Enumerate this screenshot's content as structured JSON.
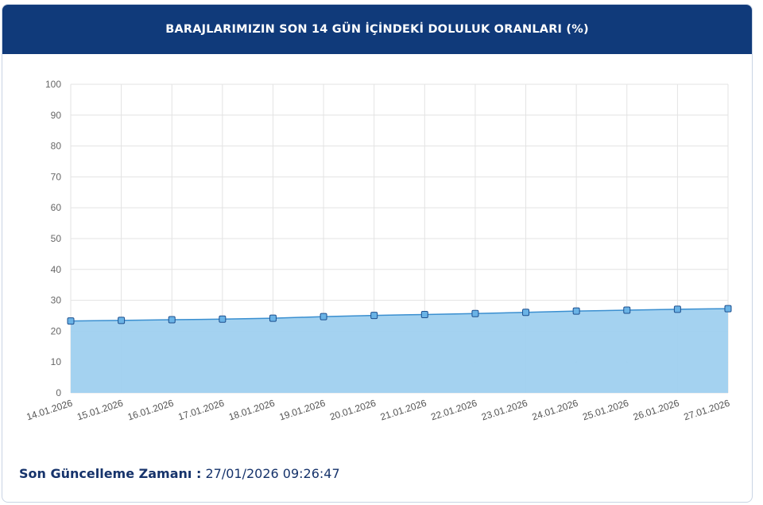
{
  "header": {
    "title": "BARAJLARIMIZIN SON 14 GÜN İÇİNDEKİ DOLULUK ORANLARI (%)"
  },
  "footer": {
    "label": "Son Güncelleme Zamanı :",
    "value": "27/01/2026 09:26:47"
  },
  "colors": {
    "header_bg": "#103a7a",
    "line": "#3a8fd0",
    "area": "#9fd0ef",
    "marker": "#6ab3e6",
    "marker_stroke": "#1d4f8e",
    "grid": "#e3e3e3"
  },
  "chart_data": {
    "type": "area",
    "categories": [
      "14.01.2026",
      "15.01.2026",
      "16.01.2026",
      "17.01.2026",
      "18.01.2026",
      "19.01.2026",
      "20.01.2026",
      "21.01.2026",
      "22.01.2026",
      "23.01.2026",
      "24.01.2026",
      "25.01.2026",
      "26.01.2026",
      "27.01.2026"
    ],
    "series": [
      {
        "values": [
          23.3,
          23.5,
          23.7,
          23.9,
          24.2,
          24.7,
          25.1,
          25.4,
          25.7,
          26.1,
          26.5,
          26.8,
          27.1,
          27.3
        ]
      }
    ],
    "yticks": [
      0,
      10,
      20,
      30,
      40,
      50,
      60,
      70,
      80,
      90,
      100
    ],
    "ylim": [
      0,
      100
    ],
    "grid": true,
    "legend": "none"
  }
}
